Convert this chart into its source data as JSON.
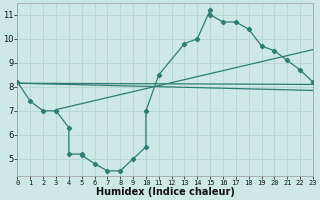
{
  "xlabel": "Humidex (Indice chaleur)",
  "bg_color": "#cde8e5",
  "grid_color": "#b8d8d5",
  "line_color": "#2e7d72",
  "curve_x": [
    0,
    1,
    2,
    3,
    4,
    4,
    5,
    5,
    6,
    7,
    8,
    9,
    10,
    10,
    11,
    13,
    14,
    15,
    15,
    16,
    17,
    18,
    19,
    20,
    21,
    22,
    23
  ],
  "curve_y": [
    8.2,
    7.4,
    7.0,
    7.0,
    6.3,
    5.2,
    5.2,
    5.15,
    4.8,
    4.5,
    4.5,
    5.0,
    5.5,
    7.0,
    8.5,
    9.8,
    10.0,
    11.2,
    11.0,
    10.7,
    10.7,
    10.4,
    9.7,
    9.5,
    9.1,
    8.7,
    8.2
  ],
  "trend1_x": [
    0,
    23
  ],
  "trend1_y": [
    8.15,
    8.1
  ],
  "trend2_x": [
    3,
    23
  ],
  "trend2_y": [
    7.05,
    9.55
  ],
  "trend3_x": [
    0,
    23
  ],
  "trend3_y": [
    8.15,
    7.85
  ],
  "xlim": [
    0,
    23
  ],
  "ylim": [
    4.3,
    11.5
  ],
  "yticks": [
    5,
    6,
    7,
    8,
    9,
    10,
    11
  ],
  "xticks": [
    0,
    1,
    2,
    3,
    4,
    5,
    6,
    7,
    8,
    9,
    10,
    11,
    12,
    13,
    14,
    15,
    16,
    17,
    18,
    19,
    20,
    21,
    22,
    23
  ],
  "xlabel_fontsize": 7,
  "tick_fontsize": 6
}
